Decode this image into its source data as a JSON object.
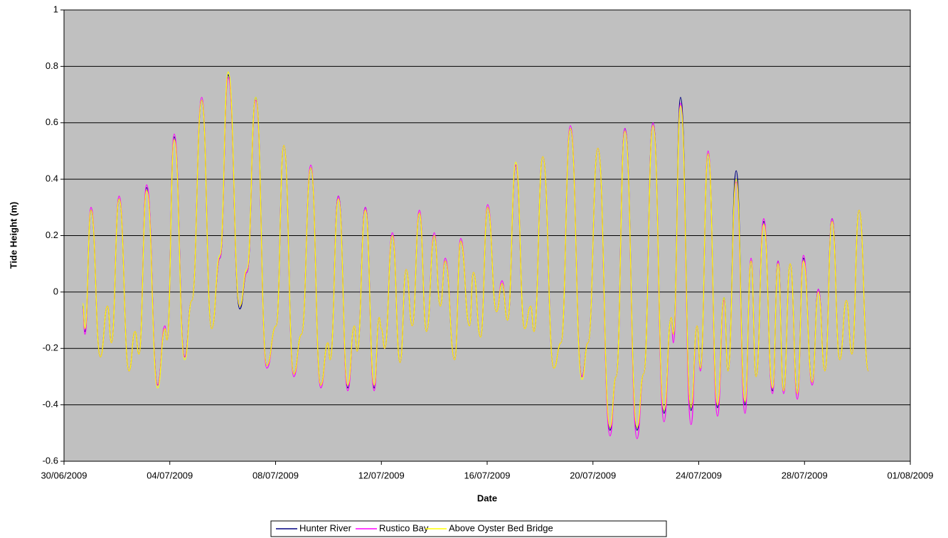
{
  "chart_data": {
    "type": "line",
    "x_label": "Date",
    "y_label": "Tide Height (m)",
    "xlim": [
      "2009-06-30",
      "2009-08-01"
    ],
    "xticks": [
      {
        "value": "2009-06-30",
        "label": "30/06/2009"
      },
      {
        "value": "2009-07-04",
        "label": "04/07/2009"
      },
      {
        "value": "2009-07-08",
        "label": "08/07/2009"
      },
      {
        "value": "2009-07-12",
        "label": "12/07/2009"
      },
      {
        "value": "2009-07-16",
        "label": "16/07/2009"
      },
      {
        "value": "2009-07-20",
        "label": "20/07/2009"
      },
      {
        "value": "2009-07-24",
        "label": "24/07/2009"
      },
      {
        "value": "2009-07-28",
        "label": "28/07/2009"
      },
      {
        "value": "2009-08-01",
        "label": "01/08/2009"
      }
    ],
    "ylim": [
      -0.6,
      1
    ],
    "yticks": [
      -0.6,
      -0.4,
      -0.2,
      0,
      0.2,
      0.4,
      0.6,
      0.8,
      1
    ],
    "grid": true,
    "plot_background": "#c0c0c0",
    "legend": "bottom",
    "x": [
      "2009-06-30T17:00",
      "2009-06-30T19:00",
      "2009-07-01T00:30",
      "2009-07-01T09:00",
      "2009-07-01T15:30",
      "2009-07-01T19:00",
      "2009-07-02T02:00",
      "2009-07-02T11:00",
      "2009-07-02T16:30",
      "2009-07-02T20:00",
      "2009-07-03T03:00",
      "2009-07-03T13:00",
      "2009-07-03T19:30",
      "2009-07-03T21:30",
      "2009-07-04T04:00",
      "2009-07-04T13:30",
      "2009-07-04T20:00",
      "2009-07-05T05:00",
      "2009-07-05T14:00",
      "2009-07-05T21:30",
      "2009-07-06T05:00",
      "2009-07-06T15:30",
      "2009-07-06T22:00",
      "2009-07-07T06:00",
      "2009-07-07T16:00",
      "2009-07-08T00:30",
      "2009-07-08T07:30",
      "2009-07-08T16:30",
      "2009-07-08T23:30",
      "2009-07-09T08:00",
      "2009-07-09T17:00",
      "2009-07-09T23:30",
      "2009-07-10T01:30",
      "2009-07-10T09:00",
      "2009-07-10T17:30",
      "2009-07-10T23:30",
      "2009-07-11T02:00",
      "2009-07-11T09:30",
      "2009-07-11T17:30",
      "2009-07-11T22:00",
      "2009-07-12T00:00",
      "2009-07-12T03:00",
      "2009-07-12T10:00",
      "2009-07-12T17:00",
      "2009-07-12T22:30",
      "2009-07-13T04:00",
      "2009-07-13T10:30",
      "2009-07-13T17:00",
      "2009-07-14T00:00",
      "2009-07-14T05:30",
      "2009-07-14T10:00",
      "2009-07-14T18:30",
      "2009-07-15T00:00",
      "2009-07-15T08:00",
      "2009-07-15T11:30",
      "2009-07-15T18:00",
      "2009-07-16T00:30",
      "2009-07-16T08:30",
      "2009-07-16T13:30",
      "2009-07-16T18:30",
      "2009-07-17T02:00",
      "2009-07-17T10:00",
      "2009-07-17T15:30",
      "2009-07-17T18:30",
      "2009-07-18T02:30",
      "2009-07-18T12:30",
      "2009-07-18T19:00",
      "2009-07-19T03:30",
      "2009-07-19T14:00",
      "2009-07-19T19:30",
      "2009-07-20T04:30",
      "2009-07-20T15:30",
      "2009-07-20T21:00",
      "2009-07-21T05:00",
      "2009-07-21T16:00",
      "2009-07-21T22:00",
      "2009-07-22T06:30",
      "2009-07-22T16:30",
      "2009-07-22T23:00",
      "2009-07-23T01:00",
      "2009-07-23T07:30",
      "2009-07-23T17:00",
      "2009-07-23T22:30",
      "2009-07-24T01:30",
      "2009-07-24T08:30",
      "2009-07-24T17:00",
      "2009-07-24T23:00",
      "2009-07-25T02:30",
      "2009-07-25T10:00",
      "2009-07-25T18:00",
      "2009-07-25T23:30",
      "2009-07-26T04:00",
      "2009-07-26T11:00",
      "2009-07-26T19:00",
      "2009-07-27T00:00",
      "2009-07-27T05:00",
      "2009-07-27T11:00",
      "2009-07-27T17:30",
      "2009-07-27T23:00",
      "2009-07-28T07:00",
      "2009-07-28T12:30",
      "2009-07-28T18:30",
      "2009-07-29T01:00",
      "2009-07-29T08:00",
      "2009-07-29T14:00",
      "2009-07-29T19:00",
      "2009-07-30T01:30",
      "2009-07-30T10:00"
    ],
    "series": [
      {
        "name": "Hunter River",
        "color": "#000080",
        "values": [
          -0.05,
          -0.14,
          0.29,
          -0.23,
          -0.05,
          -0.18,
          0.33,
          -0.28,
          -0.14,
          -0.22,
          0.37,
          -0.33,
          -0.13,
          -0.17,
          0.55,
          -0.23,
          -0.03,
          0.68,
          -0.13,
          0.12,
          0.77,
          -0.06,
          0.07,
          0.69,
          -0.26,
          -0.12,
          0.52,
          -0.29,
          -0.15,
          0.44,
          -0.33,
          -0.18,
          -0.24,
          0.34,
          -0.34,
          -0.12,
          -0.21,
          0.3,
          -0.34,
          -0.09,
          -0.13,
          -0.2,
          0.2,
          -0.25,
          0.08,
          -0.12,
          0.28,
          -0.14,
          0.2,
          -0.05,
          0.11,
          -0.24,
          0.18,
          -0.12,
          0.07,
          -0.16,
          0.3,
          -0.07,
          0.03,
          -0.1,
          0.45,
          -0.13,
          -0.05,
          -0.14,
          0.48,
          -0.27,
          -0.18,
          0.58,
          -0.3,
          -0.18,
          0.51,
          -0.49,
          -0.3,
          0.58,
          -0.49,
          -0.29,
          0.6,
          -0.43,
          -0.09,
          -0.15,
          0.69,
          -0.42,
          -0.12,
          -0.27,
          0.49,
          -0.41,
          -0.02,
          -0.28,
          0.43,
          -0.4,
          0.11,
          -0.3,
          0.25,
          -0.35,
          0.11,
          -0.35,
          0.1,
          -0.36,
          0.12,
          -0.32,
          0.01,
          -0.28,
          0.26,
          -0.24,
          -0.03,
          -0.22,
          0.29,
          -0.28
        ]
      },
      {
        "name": "Rustico Bay",
        "color": "#ff00ff",
        "values": [
          -0.06,
          -0.15,
          0.3,
          -0.23,
          -0.05,
          -0.18,
          0.34,
          -0.28,
          -0.14,
          -0.22,
          0.38,
          -0.33,
          -0.12,
          -0.17,
          0.56,
          -0.23,
          -0.03,
          0.69,
          -0.13,
          0.12,
          0.76,
          -0.05,
          0.07,
          0.68,
          -0.27,
          -0.12,
          0.52,
          -0.3,
          -0.15,
          0.45,
          -0.34,
          -0.18,
          -0.24,
          0.34,
          -0.35,
          -0.12,
          -0.21,
          0.3,
          -0.35,
          -0.09,
          -0.13,
          -0.2,
          0.21,
          -0.25,
          0.08,
          -0.12,
          0.29,
          -0.14,
          0.21,
          -0.05,
          0.12,
          -0.24,
          0.19,
          -0.12,
          0.07,
          -0.16,
          0.31,
          -0.07,
          0.04,
          -0.1,
          0.45,
          -0.13,
          -0.05,
          -0.14,
          0.48,
          -0.27,
          -0.18,
          0.59,
          -0.3,
          -0.18,
          0.51,
          -0.51,
          -0.3,
          0.58,
          -0.52,
          -0.29,
          0.6,
          -0.46,
          -0.09,
          -0.18,
          0.67,
          -0.47,
          -0.12,
          -0.28,
          0.5,
          -0.44,
          -0.03,
          -0.28,
          0.39,
          -0.43,
          0.12,
          -0.3,
          0.26,
          -0.36,
          0.11,
          -0.36,
          0.1,
          -0.38,
          0.13,
          -0.33,
          0.01,
          -0.28,
          0.26,
          -0.24,
          -0.03,
          -0.22,
          0.29,
          -0.28
        ]
      },
      {
        "name": "Above Oyster Bed Bridge",
        "color": "#ffff00",
        "values": [
          -0.04,
          -0.13,
          0.29,
          -0.23,
          -0.05,
          -0.18,
          0.33,
          -0.28,
          -0.14,
          -0.22,
          0.36,
          -0.34,
          -0.13,
          -0.17,
          0.54,
          -0.24,
          -0.03,
          0.68,
          -0.13,
          0.13,
          0.78,
          -0.05,
          0.08,
          0.69,
          -0.26,
          -0.12,
          0.52,
          -0.29,
          -0.15,
          0.44,
          -0.33,
          -0.18,
          -0.24,
          0.33,
          -0.33,
          -0.12,
          -0.21,
          0.29,
          -0.33,
          -0.09,
          -0.13,
          -0.2,
          0.2,
          -0.25,
          0.08,
          -0.12,
          0.28,
          -0.14,
          0.2,
          -0.05,
          0.11,
          -0.24,
          0.18,
          -0.12,
          0.07,
          -0.16,
          0.3,
          -0.07,
          0.03,
          -0.1,
          0.46,
          -0.13,
          -0.05,
          -0.14,
          0.48,
          -0.27,
          -0.18,
          0.58,
          -0.31,
          -0.18,
          0.51,
          -0.48,
          -0.3,
          0.57,
          -0.48,
          -0.29,
          0.59,
          -0.42,
          -0.09,
          -0.15,
          0.66,
          -0.41,
          -0.12,
          -0.27,
          0.49,
          -0.4,
          -0.02,
          -0.28,
          0.4,
          -0.39,
          0.11,
          -0.3,
          0.24,
          -0.34,
          0.1,
          -0.35,
          0.1,
          -0.36,
          0.11,
          -0.32,
          0.0,
          -0.28,
          0.25,
          -0.24,
          -0.03,
          -0.22,
          0.29,
          -0.28
        ]
      }
    ]
  }
}
